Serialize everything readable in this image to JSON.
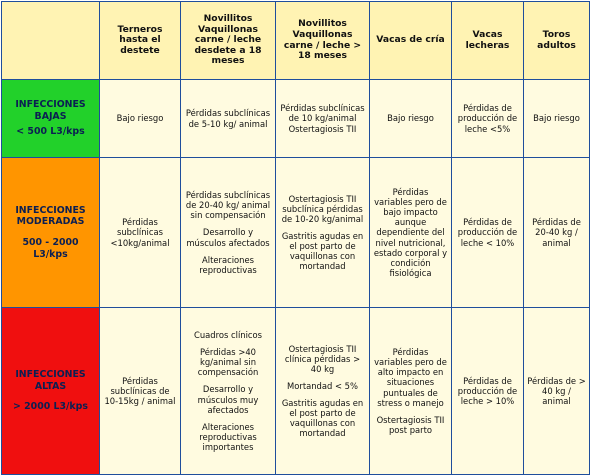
{
  "headers": [
    "",
    "Terneros hasta el destete",
    "Novillitos Vaquillonas carne / leche desdete a 18 meses",
    "Novillitos Vaquillonas carne / leche > 18 meses",
    "Vacas de cría",
    "Vacas lecheras",
    "Toros adultos"
  ],
  "rows": [
    {
      "category": {
        "title": "INFECCIONES BAJAS",
        "range": "< 500 L3/kps"
      },
      "cells": [
        [
          "Bajo riesgo"
        ],
        [
          "Pérdidas subclínicas de 5-10 kg/ animal"
        ],
        [
          "Pérdidas subclínicas de 10 kg/animal Ostertagiosis TII"
        ],
        [
          "Bajo riesgo"
        ],
        [
          "Pérdidas de producción de leche <5%"
        ],
        [
          "Bajo riesgo"
        ]
      ]
    },
    {
      "category": {
        "title": "INFECCIONES MODERADAS",
        "range": "500 - 2000 L3/kps"
      },
      "cells": [
        [
          "Pérdidas subclínicas <10kg/animal"
        ],
        [
          "Pérdidas subclínicas de 20-40 kg/ animal sin compensación",
          "Desarrollo y músculos afectados",
          "Alteraciones reproductivas"
        ],
        [
          "Ostertagiosis TII subclínica pérdidas de 10-20 kg/animal",
          "Gastritis agudas en el post parto de vaquillonas con mortandad"
        ],
        [
          "Pérdidas variables pero de bajo impacto aunque dependiente del nivel nutricional, estado corporal y condición fisiológica"
        ],
        [
          "Pérdidas de producción de leche < 10%"
        ],
        [
          "Pérdidas de 20-40 kg / animal"
        ]
      ]
    },
    {
      "category": {
        "title": "INFECCIONES ALTAS",
        "range": "> 2000 L3/kps"
      },
      "cells": [
        [
          "Pérdidas subclínicas de 10-15kg / animal"
        ],
        [
          "Cuadros clínicos",
          "Pérdidas >40 kg/animal sin compensación",
          "Desarrollo y músculos muy afectados",
          "Alteraciones reproductivas importantes"
        ],
        [
          "Ostertagiosis TII clínica pérdidas > 40 kg",
          "Mortandad < 5%",
          "Gastritis agudas en el post parto de vaquillonas con mortandad"
        ],
        [
          "Pérdidas variables pero de alto impacto en situaciones puntuales de stress o manejo",
          "Ostertagiosis TII post parto"
        ],
        [
          "Pérdidas de producción de leche > 10%"
        ],
        [
          "Pérdidas de > 40 kg / animal"
        ]
      ]
    }
  ]
}
